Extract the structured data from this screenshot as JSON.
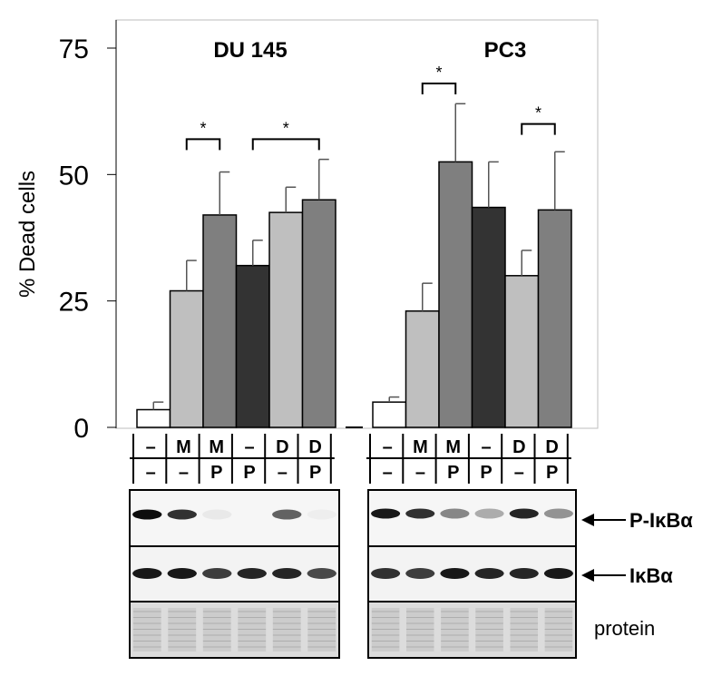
{
  "chart_data": {
    "type": "bar",
    "ylabel": "% Dead cells",
    "ylim": [
      0,
      75
    ],
    "yticks": [
      "0",
      "25",
      "50",
      "75"
    ],
    "grid": false,
    "panels": [
      {
        "title": "DU 145",
        "row1": [
          "–",
          "M",
          "M",
          "–",
          "D",
          "D"
        ],
        "row2": [
          "–",
          "–",
          "P",
          "P",
          "–",
          "P"
        ],
        "values": [
          3.5,
          27,
          42,
          32,
          42.5,
          45
        ],
        "errors": [
          1.5,
          6,
          8.5,
          5,
          5,
          8
        ],
        "colors": [
          "#ffffff",
          "#bfbfbf",
          "#7f7f7f",
          "#333333",
          "#bfbfbf",
          "#7f7f7f"
        ],
        "significance": [
          {
            "from": 1,
            "to": 2,
            "height": 57,
            "label": "*"
          },
          {
            "from": 3,
            "to": 5,
            "height": 57,
            "label": "*"
          }
        ],
        "pIkBa": [
          0.95,
          0.8,
          0.05,
          0,
          0.6,
          0.03
        ],
        "IkBa": [
          0.9,
          0.9,
          0.75,
          0.85,
          0.85,
          0.7
        ]
      },
      {
        "title": "PC3",
        "row1": [
          "–",
          "M",
          "M",
          "–",
          "D",
          "D"
        ],
        "row2": [
          "–",
          "–",
          "P",
          "P",
          "–",
          "P"
        ],
        "values": [
          5,
          23,
          52.5,
          43.5,
          30,
          43
        ],
        "errors": [
          1,
          5.5,
          11.5,
          9,
          5,
          11.5
        ],
        "colors": [
          "#ffffff",
          "#bfbfbf",
          "#7f7f7f",
          "#333333",
          "#bfbfbf",
          "#7f7f7f"
        ],
        "significance": [
          {
            "from": 1,
            "to": 2,
            "height": 68,
            "label": "*"
          },
          {
            "from": 4,
            "to": 5,
            "height": 60,
            "label": "*"
          }
        ],
        "pIkBa": [
          0.9,
          0.8,
          0.45,
          0.3,
          0.85,
          0.4
        ],
        "IkBa": [
          0.8,
          0.75,
          0.9,
          0.85,
          0.85,
          0.9
        ]
      }
    ],
    "blot_labels": [
      "P-IκBα",
      "IκBα",
      "protein"
    ]
  }
}
